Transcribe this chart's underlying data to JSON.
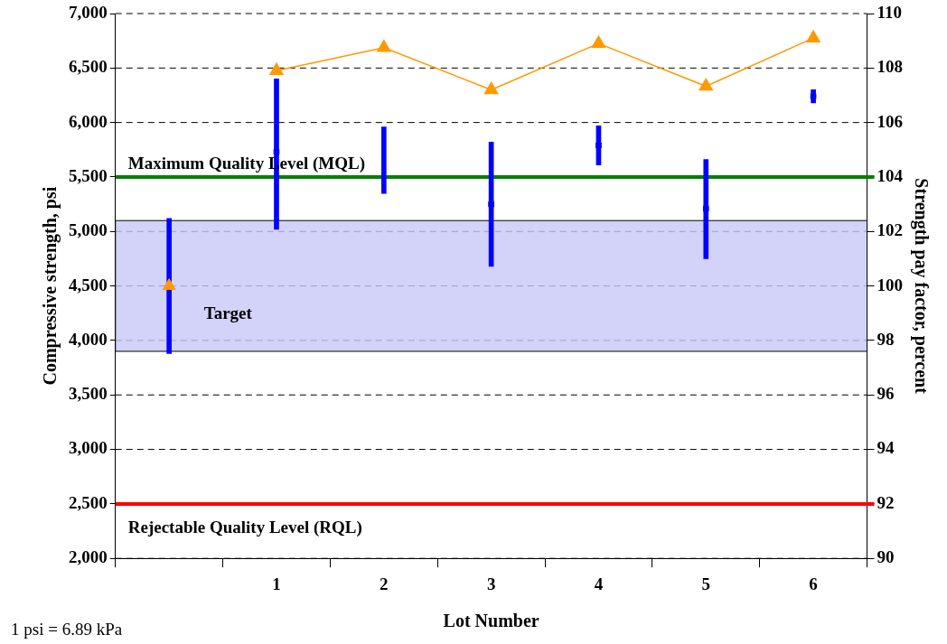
{
  "chart_data": {
    "type": "bar",
    "xlabel": "Lot Number",
    "ylabel": "Compressive strength, psi",
    "y2label": "Strength pay factor, percent",
    "categories": [
      null,
      "1",
      "2",
      "3",
      "4",
      "5",
      "6"
    ],
    "series": [
      {
        "color": "#0000ff",
        "base": [
          3880,
          5020,
          5350,
          4680,
          5610,
          4750,
          6180
        ],
        "values": [
          1240,
          1380,
          610,
          1140,
          360,
          910,
          120
        ]
      },
      {
        "type": "scatter",
        "color": "#0000ff",
        "marker": "square",
        "values": [
          null,
          5730,
          null,
          5250,
          5790,
          5210,
          6240
        ]
      },
      {
        "type": "scatter",
        "axis": "y2",
        "color": "#ff9900",
        "marker": "triangle",
        "values": [
          100,
          null,
          null,
          null,
          null,
          null,
          null
        ]
      },
      {
        "type": "line",
        "axis": "y2",
        "color": "#ff9900",
        "marker": "triangle",
        "line_style": "solid",
        "values": [
          null,
          107.9,
          108.75,
          107.2,
          108.9,
          107.33,
          109.1
        ]
      }
    ],
    "ylim": [
      2000,
      7000
    ],
    "yticks": [
      {
        "value": 2000,
        "label": "2,000"
      },
      {
        "value": 2500,
        "label": "2,500"
      },
      {
        "value": 3000,
        "label": "3,000"
      },
      {
        "value": 3500,
        "label": "3,500"
      },
      {
        "value": 4000,
        "label": "4,000"
      },
      {
        "value": 4500,
        "label": "4,500"
      },
      {
        "value": 5000,
        "label": "5,000"
      },
      {
        "value": 5500,
        "label": "5,500"
      },
      {
        "value": 6000,
        "label": "6,000"
      },
      {
        "value": 6500,
        "label": "6,500"
      },
      {
        "value": 7000,
        "label": "7,000"
      }
    ],
    "y2lim": [
      90,
      110
    ],
    "y2ticks": [
      90,
      92,
      94,
      96,
      98,
      100,
      102,
      104,
      106,
      108,
      110
    ],
    "ref_lines": [
      {
        "axis": "y",
        "value": 5500,
        "label": "Maximum Quality Level (MQL)",
        "color": "#008000"
      },
      {
        "axis": "y",
        "value": 2500,
        "label": "Rejectable Quality Level (RQL)",
        "color": "#ff0000"
      }
    ],
    "bands": [
      {
        "axis": "y",
        "from": 3900,
        "to": 5100,
        "label": "Target",
        "color": "#c8c8f8"
      }
    ],
    "annotations": [
      "1 psi = 6.89 kPa"
    ],
    "grid": "y",
    "legend": false
  }
}
